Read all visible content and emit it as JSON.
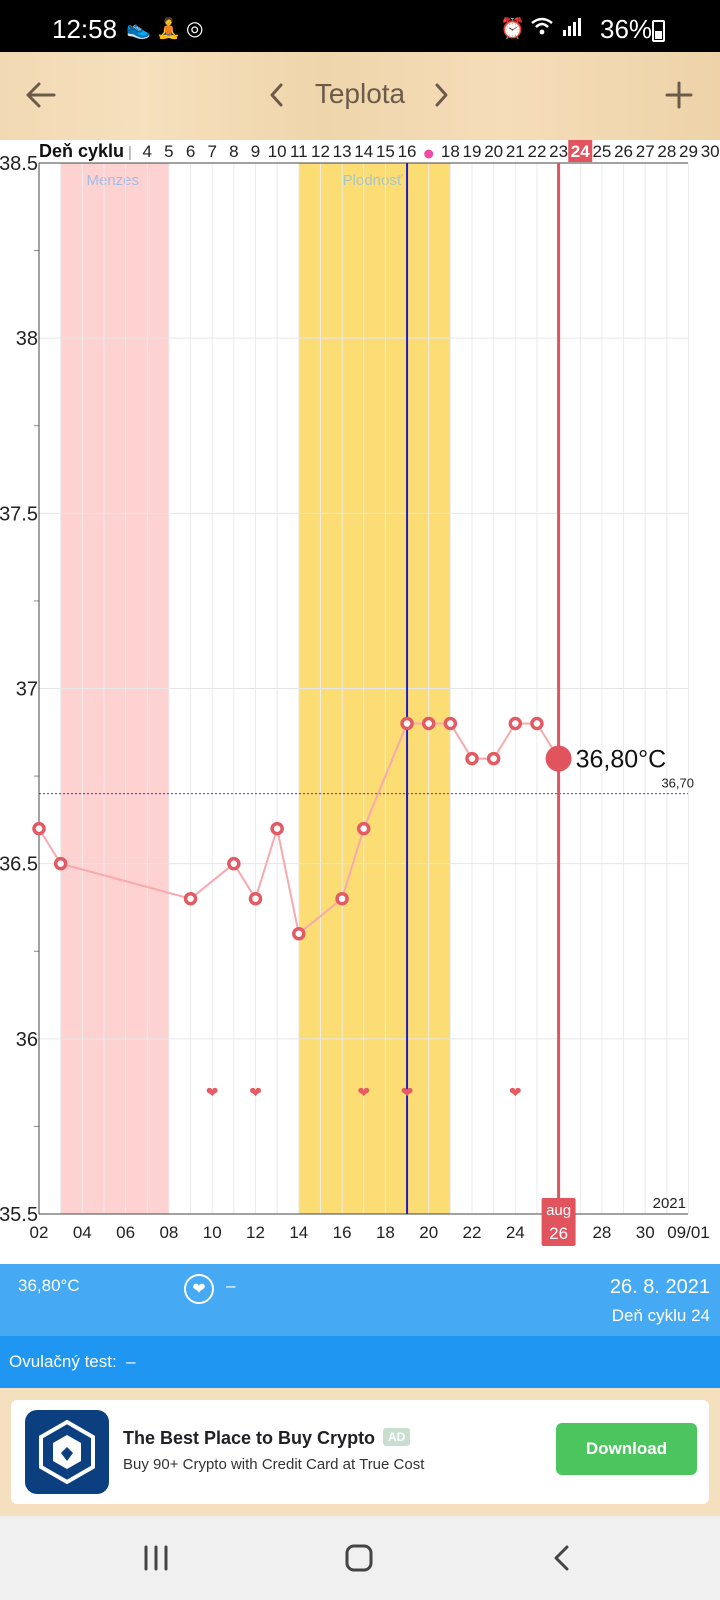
{
  "status_bar": {
    "time": "12:58",
    "battery": "36%",
    "left_icons": [
      "shoe-icon",
      "meditation-icon",
      "target-icon"
    ],
    "right_icons": [
      "alarm-icon",
      "wifi-icon",
      "signal-icon",
      "battery-icon"
    ]
  },
  "toolbar": {
    "title": "Teplota",
    "back_icon": "arrow-left-icon",
    "prev_icon": "chevron-left-icon",
    "next_icon": "chevron-right-icon",
    "add_icon": "plus-icon",
    "color": "#6b5b4b"
  },
  "chart_data": {
    "type": "line",
    "title": "",
    "ylabel": "",
    "xlabel": "",
    "cycle_day_label": "Deň cyklu",
    "cycle_day_ticks": [
      "4",
      "5",
      "6",
      "7",
      "8",
      "9",
      "10",
      "11",
      "12",
      "13",
      "14",
      "15",
      "16",
      "",
      "18",
      "19",
      "20",
      "21",
      "22",
      "23",
      "24",
      "25",
      "26",
      "27",
      "28",
      "29",
      "30"
    ],
    "current_cycle_day": "24",
    "ylim": [
      35.5,
      38.5
    ],
    "y_ticks": [
      "35.5",
      "36",
      "36.5",
      "37",
      "37.5",
      "38",
      "38.5"
    ],
    "x_ticks": [
      "02",
      "04",
      "06",
      "08",
      "10",
      "12",
      "14",
      "16",
      "18",
      "20",
      "22",
      "24",
      "26",
      "28",
      "30",
      "09/01"
    ],
    "x_range": [
      "2021-08-02",
      "2021-09-01"
    ],
    "year_label": "2021",
    "month_label": "aug",
    "current_date_label": "26",
    "bands": [
      {
        "label": "Menzes",
        "start": "2021-08-03",
        "end": "2021-08-07",
        "color": "#ffd2d2",
        "label_color": "#a4bbe6"
      },
      {
        "label": "Plodnosť",
        "start": "2021-08-14",
        "end": "2021-08-20",
        "color": "#fbdd74",
        "label_color": "#a9c6c6"
      }
    ],
    "ovulation": {
      "date": "2021-08-19",
      "color": "#1c1ccc",
      "marker_color": "#ee4aa6"
    },
    "cover_line": {
      "value": 36.7,
      "label": "36,70",
      "color": "#3b3bd8"
    },
    "series": [
      {
        "x": [
          "2021-08-02",
          "2021-08-03",
          "2021-08-09",
          "2021-08-11",
          "2021-08-12",
          "2021-08-13",
          "2021-08-14",
          "2021-08-16",
          "2021-08-17",
          "2021-08-19",
          "2021-08-20",
          "2021-08-21",
          "2021-08-22",
          "2021-08-23",
          "2021-08-24",
          "2021-08-25",
          "2021-08-26"
        ],
        "values": [
          36.6,
          36.5,
          36.4,
          36.5,
          36.4,
          36.6,
          36.3,
          36.4,
          36.6,
          36.9,
          36.9,
          36.9,
          36.8,
          36.8,
          36.9,
          36.9,
          36.8
        ],
        "color": "#e35a63",
        "line_color": "#f7a9ae"
      }
    ],
    "intercourse_dates": [
      "2021-08-10",
      "2021-08-12",
      "2021-08-17",
      "2021-08-19",
      "2021-08-24"
    ],
    "selected": {
      "date": "2021-08-26",
      "value": 36.8,
      "label": "36,80°C",
      "color": "#e1535d"
    }
  },
  "info": {
    "temperature": "36,80°C",
    "heart_icon": "heart-icon",
    "intercourse_value": "–",
    "date": "26. 8. 2021",
    "cycle_day": "Deň cyklu 24"
  },
  "ovulation_test": {
    "label": "Ovulačný test:",
    "value": "–"
  },
  "ad": {
    "title": "The Best Place to Buy Crypto",
    "badge": "AD",
    "subtitle": "Buy 90+ Crypto with Credit Card at True Cost",
    "button": "Download",
    "logo_icon": "crypto-lion-logo-icon"
  },
  "nav": {
    "recent_icon": "recent-apps-icon",
    "home_icon": "home-icon",
    "back_icon": "back-icon"
  }
}
